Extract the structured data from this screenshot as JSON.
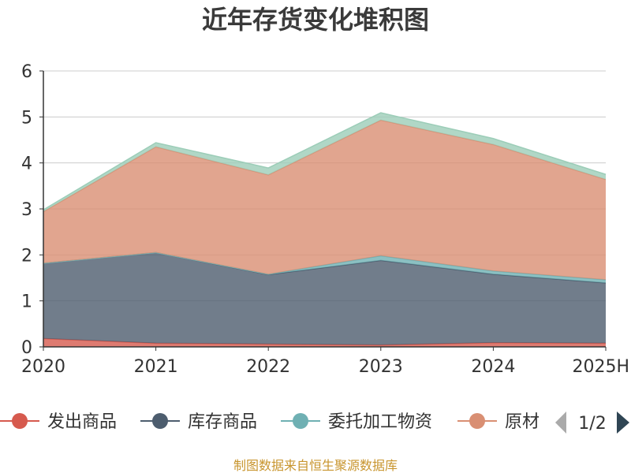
{
  "chart_data": {
    "type": "area",
    "stacked": true,
    "title": "近年存货变化堆积图",
    "categories": [
      "2020",
      "2021",
      "2022",
      "2023",
      "2024",
      "2025H"
    ],
    "ylim": [
      0,
      6
    ],
    "yticks": [
      0,
      1,
      2,
      3,
      4,
      5,
      6
    ],
    "grid": true,
    "series": [
      {
        "name": "发出商品",
        "color": "#d65a4e",
        "values": [
          0.18,
          0.08,
          0.06,
          0.04,
          0.09,
          0.08
        ]
      },
      {
        "name": "库存商品",
        "color": "#4d5d6e",
        "values": [
          1.64,
          1.97,
          1.51,
          1.84,
          1.49,
          1.31
        ]
      },
      {
        "name": "委托加工物资",
        "color": "#6fb0b3",
        "values": [
          0.0,
          0.0,
          0.01,
          0.1,
          0.07,
          0.07
        ]
      },
      {
        "name": "原材料",
        "color": "#d98f73",
        "values": [
          1.12,
          2.3,
          2.16,
          2.95,
          2.75,
          2.18
        ]
      },
      {
        "name": "",
        "color": "#9ccdb8",
        "values": [
          0.04,
          0.09,
          0.15,
          0.16,
          0.13,
          0.11
        ]
      }
    ],
    "legend": {
      "position": "bottom",
      "visible_items": [
        "发出商品",
        "库存商品",
        "委托加工物资",
        "原材"
      ],
      "page": "1/2"
    },
    "source_note": "制图数据来自恒生聚源数据库"
  }
}
